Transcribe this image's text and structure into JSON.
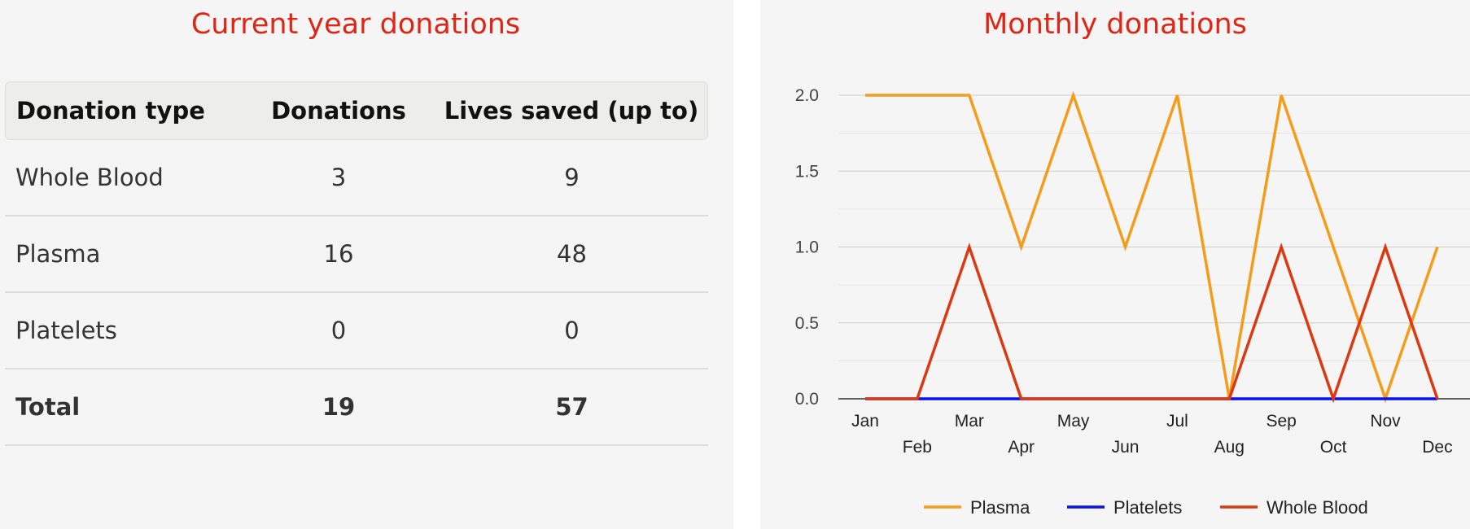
{
  "left": {
    "title": "Current year donations",
    "headers": [
      "Donation type",
      "Donations",
      "Lives saved (up to)"
    ],
    "rows": [
      [
        "Whole Blood",
        "3",
        "9"
      ],
      [
        "Plasma",
        "16",
        "48"
      ],
      [
        "Platelets",
        "0",
        "0"
      ]
    ],
    "total": [
      "Total",
      "19",
      "57"
    ]
  },
  "right": {
    "title": "Monthly donations"
  },
  "chart_data": {
    "type": "line",
    "title": "Monthly donations",
    "x": [
      "Jan",
      "Feb",
      "Mar",
      "Apr",
      "May",
      "Jun",
      "Jul",
      "Aug",
      "Sep",
      "Oct",
      "Nov",
      "Dec"
    ],
    "ylim": [
      0,
      2
    ],
    "yticks": [
      "0.0",
      "0.5",
      "1.0",
      "1.5",
      "2.0"
    ],
    "grid": true,
    "legend_position": "bottom",
    "series": [
      {
        "name": "Plasma",
        "color": "#f59c1a",
        "values": [
          2,
          2,
          2,
          1,
          2,
          1,
          2,
          0,
          2,
          1,
          0,
          1
        ]
      },
      {
        "name": "Platelets",
        "color": "#0a10e8",
        "values": [
          0,
          0,
          0,
          0,
          0,
          0,
          0,
          0,
          0,
          0,
          0,
          0
        ]
      },
      {
        "name": "Whole Blood",
        "color": "#dc3912",
        "values": [
          0,
          0,
          1,
          0,
          0,
          0,
          0,
          0,
          1,
          0,
          1,
          0
        ]
      }
    ]
  }
}
